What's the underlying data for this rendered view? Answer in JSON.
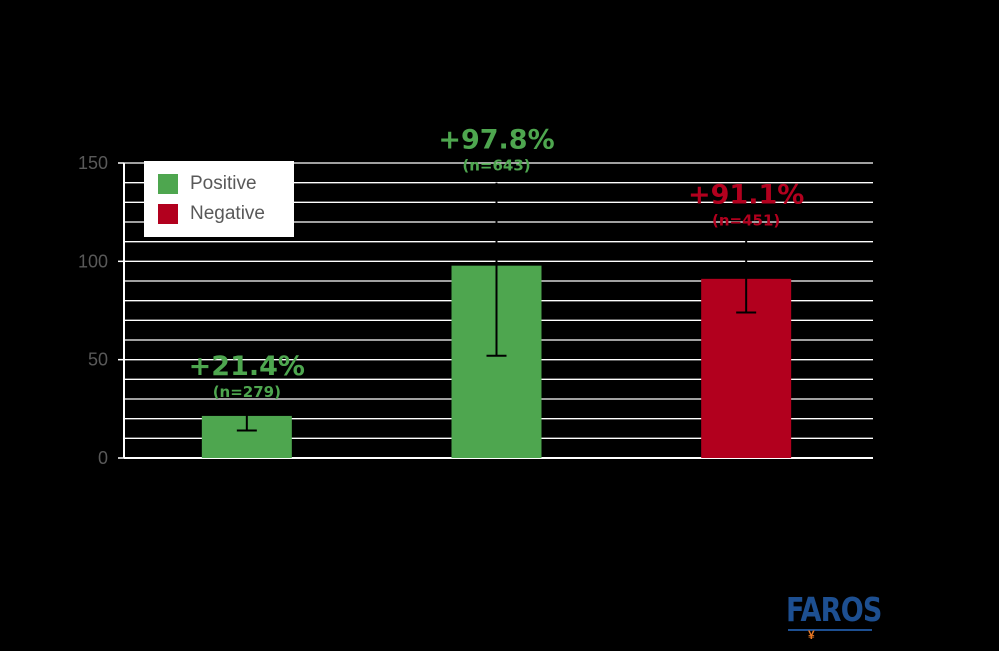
{
  "chart_data": {
    "type": "bar",
    "categories": [
      "",
      "",
      ""
    ],
    "series": [
      {
        "name": "Positive",
        "color": "#4ea64f",
        "values": [
          21.4,
          97.8,
          null
        ],
        "error_low": [
          14,
          52,
          null
        ],
        "error_high": [
          25,
          140,
          null
        ]
      },
      {
        "name": "Negative",
        "color": "#b2001e",
        "values": [
          null,
          null,
          91.1
        ],
        "error_low": [
          null,
          null,
          74
        ],
        "error_high": [
          null,
          null,
          112
        ]
      }
    ],
    "bar_colors": [
      "#4ea64f",
      "#4ea64f",
      "#b2001e"
    ],
    "data_labels": [
      "+21.4%",
      "+97.8%",
      "+91.1%"
    ],
    "n_labels": [
      "(n=279)",
      "(n=643)",
      "(n=451)"
    ],
    "label_colors": [
      "#4ea64f",
      "#4ea64f",
      "#b2001e"
    ],
    "ylim": [
      0,
      150
    ],
    "yticks": [
      "0",
      "50",
      "100",
      "150"
    ],
    "minor_grid_step": 10,
    "title": "",
    "xlabel": "",
    "ylabel": "",
    "grid": true,
    "legend_position": "top-left"
  },
  "legend": {
    "positive_label": "Positive",
    "negative_label": "Negative",
    "positive_color": "#4ea64f",
    "negative_color": "#b2001e"
  },
  "logo": {
    "text": "FAROS",
    "mark": "¥"
  }
}
